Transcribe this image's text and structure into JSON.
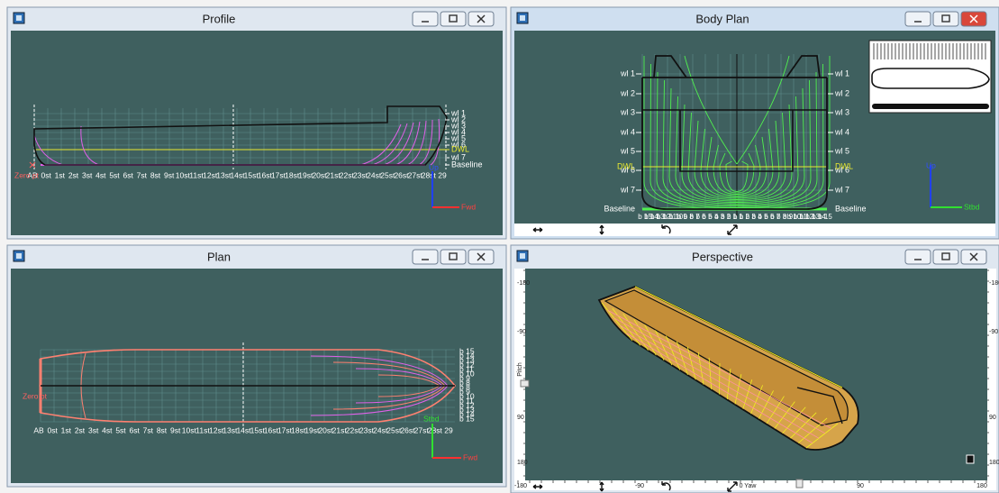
{
  "windows": {
    "profile": {
      "title": "Profile",
      "waterlines": [
        "wl 1",
        "wl 2",
        "wl 3",
        "wl 4",
        "wl 5",
        "wl 6",
        "wl 7"
      ],
      "dwl": "DWL",
      "baseline": "Baseline",
      "stations": [
        "AB",
        "0st",
        "1st",
        "2st",
        "3st",
        "4st",
        "5st",
        "6st",
        "7st",
        "8st",
        "9st",
        "10st",
        "11st",
        "12st",
        "13st",
        "14st",
        "15st",
        "16st",
        "17st",
        "18st",
        "19st",
        "20st",
        "21st",
        "22st",
        "23st",
        "24st",
        "25st",
        "26st",
        "27st",
        "28st",
        "29"
      ],
      "zero_point": "Zero pt",
      "axis_up": "Up",
      "axis_fwd": "Fwd"
    },
    "body_plan": {
      "title": "Body Plan",
      "waterlines_left": [
        "wl 1",
        "wl 2",
        "wl 3",
        "wl 4",
        "wl 5",
        "wl 6",
        "wl 7"
      ],
      "waterlines_right": [
        "wl 1",
        "wl 2",
        "wl 3",
        "wl 4",
        "wl 5",
        "wl 6",
        "wl 7"
      ],
      "dwl_left": "DWL",
      "dwl_right": "DWL",
      "baseline_left": "Baseline",
      "baseline_right": "Baseline",
      "buttocks": [
        "b 15",
        "b 14",
        "b 13",
        "b 12",
        "b 11",
        "b 10",
        "b 9",
        "b 8",
        "b 7",
        "b 6",
        "b 5",
        "b 4",
        "b 3",
        "b 2",
        "b 1",
        "b 1",
        "b 2",
        "b 3",
        "b 4",
        "b 5",
        "b 6",
        "b 7",
        "b 8",
        "b 9",
        "b 10",
        "b 11",
        "b 12",
        "b 13",
        "b 14",
        "b 15"
      ],
      "axis_up": "Up",
      "axis_stbd": "Stbd"
    },
    "plan": {
      "title": "Plan",
      "buttocks": [
        "b 15",
        "b 14",
        "b 13",
        "b 12",
        "b 11",
        "b 10",
        "b 9",
        "b 8",
        "b 8",
        "b 9",
        "b 10",
        "b 11",
        "b 12",
        "b 13",
        "b 14",
        "b 15"
      ],
      "stations": [
        "AB",
        "0st",
        "1st",
        "2st",
        "3st",
        "4st",
        "5st",
        "6st",
        "7st",
        "8st",
        "9st",
        "10st",
        "11st",
        "12st",
        "13st",
        "14st",
        "15st",
        "16st",
        "17st",
        "18st",
        "19st",
        "20st",
        "21st",
        "22st",
        "23st",
        "24st",
        "25st",
        "26st",
        "27st",
        "28st",
        "29"
      ],
      "zero_point": "Zero pt",
      "axis_stbd": "Stbd",
      "axis_fwd": "Fwd"
    },
    "perspective": {
      "title": "Perspective",
      "pitch_ruler_left": [
        "-180",
        "-90",
        "Pitch",
        "90",
        "180"
      ],
      "pitch_ruler_right": [
        "-180",
        "-90",
        "90",
        "180"
      ],
      "yaw_ruler": [
        "-180",
        "-90",
        "0 Yaw",
        "90",
        "180"
      ]
    }
  }
}
